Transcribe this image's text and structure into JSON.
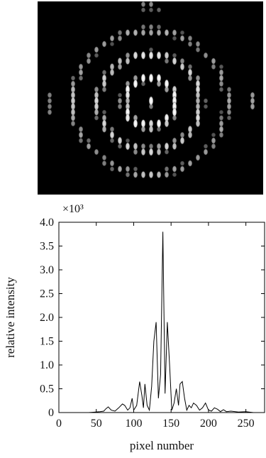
{
  "figure": {
    "image_description": "fringe pattern"
  },
  "chart_data": {
    "type": "line",
    "xlabel": "pixel number",
    "ylabel": "relative intensity",
    "y_multiplier": "×10³",
    "xlim": [
      0,
      275
    ],
    "ylim": [
      0,
      4.0
    ],
    "x_ticks": [
      0,
      50,
      100,
      150,
      200,
      250
    ],
    "x_tick_labels": [
      "0",
      "50",
      "100",
      "150",
      "200",
      "250"
    ],
    "y_ticks": [
      0,
      0.5,
      1.0,
      1.5,
      2.0,
      2.5,
      3.0,
      3.5,
      4.0
    ],
    "y_tick_labels": [
      "0",
      "0.5",
      "1.0",
      "1.5",
      "2.0",
      "2.5",
      "3.0",
      "3.5",
      "4.0"
    ],
    "grid": false,
    "series": [
      {
        "x": [
          0,
          40,
          55,
          60,
          63,
          66,
          70,
          75,
          80,
          85,
          88,
          92,
          95,
          98,
          100,
          104,
          108,
          111,
          113,
          115,
          118,
          121,
          124,
          127,
          130,
          133,
          136,
          139,
          142,
          145,
          148,
          151,
          154,
          157,
          160,
          162,
          165,
          168,
          171,
          174,
          177,
          180,
          184,
          188,
          192,
          196,
          200,
          204,
          208,
          212,
          216,
          220,
          224,
          230,
          240,
          250,
          260,
          270,
          275
        ],
        "values": [
          0.0,
          0.0,
          0.02,
          0.03,
          0.08,
          0.12,
          0.05,
          0.03,
          0.1,
          0.18,
          0.15,
          0.05,
          0.1,
          0.3,
          0.05,
          0.15,
          0.65,
          0.35,
          0.1,
          0.6,
          0.15,
          0.05,
          0.55,
          1.5,
          1.9,
          0.3,
          0.8,
          3.8,
          0.4,
          1.9,
          1.0,
          0.05,
          0.2,
          0.5,
          0.15,
          0.6,
          0.65,
          0.3,
          0.05,
          0.15,
          0.1,
          0.2,
          0.15,
          0.05,
          0.1,
          0.2,
          0.05,
          0.03,
          0.1,
          0.07,
          0.02,
          0.06,
          0.02,
          0.03,
          0.01,
          0.02,
          0.0,
          0.0,
          0.0
        ]
      }
    ]
  }
}
